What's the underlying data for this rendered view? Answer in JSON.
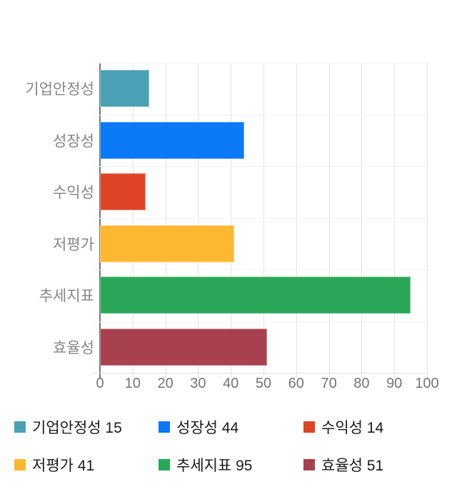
{
  "chart_data": {
    "type": "bar",
    "orientation": "horizontal",
    "title": "",
    "categories": [
      "기업안정성",
      "성장성",
      "수익성",
      "저평가",
      "추세지표",
      "효율성"
    ],
    "values": [
      15,
      44,
      14,
      41,
      95,
      51
    ],
    "bar_colors": [
      "#4AA0B5",
      "#0B78F5",
      "#DE4426",
      "#FCB831",
      "#2AA758",
      "#A8414F"
    ],
    "xlim": [
      0,
      100
    ],
    "x_ticks": [
      0,
      10,
      20,
      30,
      40,
      50,
      60,
      70,
      80,
      90,
      100
    ],
    "grid": "vertical",
    "legend_position": "bottom",
    "legend_labels": [
      "기업안정성 15",
      "성장성 44",
      "수익성 14",
      "저평가 41",
      "추세지표 95",
      "효율성 51"
    ]
  },
  "palette": {
    "background": "#ffffff",
    "axis_line": "#757575",
    "gridline": "#e3e3e3",
    "band_line": "#f2f2f2",
    "category_label_color": "#868686",
    "tick_label_color": "#757575",
    "legend_text_color": "#1b1b1b"
  }
}
